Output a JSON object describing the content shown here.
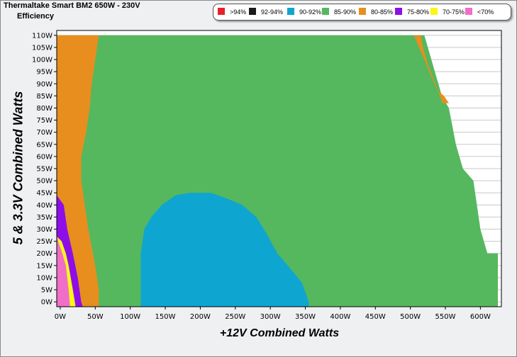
{
  "header": {
    "title": "Thermaltake Smart BM2 650W - 230V",
    "subtitle": "Efficiency"
  },
  "chart_data": {
    "type": "heatmap",
    "title": "Thermaltake Smart BM2 650W - 230V",
    "subtitle": "Efficiency",
    "xlabel": "+12V Combined Watts",
    "ylabel": "5 & 3.3V Combined Watts",
    "xlim": [
      -5,
      630
    ],
    "ylim": [
      -2,
      112
    ],
    "x_ticks": [
      "0W",
      "50W",
      "100W",
      "150W",
      "200W",
      "250W",
      "300W",
      "350W",
      "400W",
      "450W",
      "500W",
      "550W",
      "600W"
    ],
    "y_ticks": [
      "0W",
      "5W",
      "10W",
      "15W",
      "20W",
      "25W",
      "30W",
      "35W",
      "40W",
      "45W",
      "50W",
      "55W",
      "60W",
      "65W",
      "70W",
      "75W",
      "80W",
      "85W",
      "90W",
      "95W",
      "100W",
      "105W",
      "110W"
    ],
    "legend": [
      {
        "label": ">94%",
        "color": "#e8202a"
      },
      {
        "label": "92-94%",
        "color": "#1a1a1a"
      },
      {
        "label": "90-92%",
        "color": "#0ea5d1"
      },
      {
        "label": "85-90%",
        "color": "#55b85e"
      },
      {
        "label": "80-85%",
        "color": "#e88e1e"
      },
      {
        "label": "75-80%",
        "color": "#8e0ee8"
      },
      {
        "label": "70-75%",
        "color": "#f7f71a"
      },
      {
        "label": "<70%",
        "color": "#f06ec8"
      }
    ],
    "legend_position": "top-right",
    "grid": true,
    "upper_limit": [
      [
        -5,
        110
      ],
      [
        520,
        110
      ],
      [
        540,
        90
      ],
      [
        545,
        85
      ],
      [
        555,
        80
      ],
      [
        565,
        65
      ],
      [
        575,
        55
      ],
      [
        590,
        50
      ],
      [
        600,
        30
      ],
      [
        610,
        20
      ],
      [
        625,
        20
      ],
      [
        625,
        -2
      ]
    ],
    "bands": [
      {
        "label": "85-90%",
        "left": [
          [
            -5,
            110
          ],
          [
            55,
            110
          ],
          [
            50,
            100
          ],
          [
            45,
            90
          ],
          [
            42,
            80
          ],
          [
            37,
            70
          ],
          [
            30,
            60
          ],
          [
            30,
            50
          ],
          [
            40,
            30
          ],
          [
            50,
            15
          ],
          [
            55,
            5
          ],
          [
            55,
            -2
          ]
        ],
        "right": [
          [
            -5,
            110
          ],
          [
            520,
            110
          ],
          [
            540,
            90
          ],
          [
            545,
            85
          ],
          [
            555,
            80
          ],
          [
            565,
            65
          ],
          [
            575,
            55
          ],
          [
            590,
            50
          ],
          [
            600,
            30
          ],
          [
            610,
            20
          ],
          [
            625,
            20
          ],
          [
            625,
            -2
          ]
        ]
      },
      {
        "label": "80-85%",
        "upper_right": [
          [
            505,
            110
          ],
          [
            515,
            110
          ],
          [
            518,
            105
          ],
          [
            525,
            98
          ],
          [
            533,
            92
          ],
          [
            540,
            87
          ],
          [
            548,
            85
          ],
          [
            555,
            82
          ],
          [
            546,
            82
          ],
          [
            541,
            86
          ],
          [
            536,
            89
          ],
          [
            527,
            95
          ],
          [
            520,
            100
          ],
          [
            514,
            104
          ]
        ]
      },
      {
        "label": "90-92%",
        "region": [
          [
            115,
            -2
          ],
          [
            115,
            20
          ],
          [
            120,
            30
          ],
          [
            130,
            35
          ],
          [
            145,
            40
          ],
          [
            165,
            44
          ],
          [
            185,
            45
          ],
          [
            215,
            45
          ],
          [
            235,
            43
          ],
          [
            260,
            40
          ],
          [
            280,
            35
          ],
          [
            295,
            28
          ],
          [
            310,
            20
          ],
          [
            325,
            15
          ],
          [
            345,
            8
          ],
          [
            355,
            0
          ],
          [
            355,
            -2
          ]
        ]
      },
      {
        "label": "75-80%",
        "boundary": [
          [
            -5,
            44
          ],
          [
            5,
            40
          ],
          [
            10,
            30
          ],
          [
            18,
            20
          ],
          [
            25,
            10
          ],
          [
            30,
            0
          ],
          [
            32,
            -2
          ]
        ]
      },
      {
        "label": "70-75%",
        "boundary": [
          [
            -5,
            27
          ],
          [
            2,
            25
          ],
          [
            8,
            20
          ],
          [
            12,
            15
          ],
          [
            18,
            5
          ],
          [
            22,
            -2
          ]
        ]
      },
      {
        "label": "<70%",
        "boundary": [
          [
            -5,
            28
          ],
          [
            -3,
            25
          ],
          [
            3,
            20
          ],
          [
            8,
            15
          ],
          [
            12,
            5
          ],
          [
            14,
            -2
          ]
        ]
      }
    ]
  }
}
